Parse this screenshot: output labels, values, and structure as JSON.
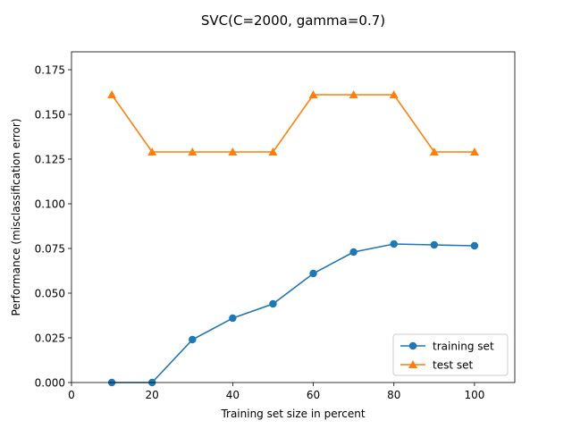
{
  "chart_data": {
    "type": "line",
    "title": "SVC(C=2000, gamma=0.7)",
    "xlabel": "Training set size in percent",
    "ylabel": "Performance (misclassification error)",
    "xlim": [
      0,
      110
    ],
    "ylim": [
      0,
      0.185
    ],
    "xticks": [
      0,
      20,
      40,
      60,
      80,
      100
    ],
    "yticks": [
      0.0,
      0.025,
      0.05,
      0.075,
      0.1,
      0.125,
      0.15,
      0.175
    ],
    "xtick_labels": [
      "0",
      "20",
      "40",
      "60",
      "80",
      "100"
    ],
    "ytick_labels": [
      "0.000",
      "0.025",
      "0.050",
      "0.075",
      "0.100",
      "0.125",
      "0.150",
      "0.175"
    ],
    "grid": false,
    "legend_position": "lower-right",
    "x": [
      10,
      20,
      30,
      40,
      50,
      60,
      70,
      80,
      90,
      100
    ],
    "series": [
      {
        "name": "training set",
        "color": "#1f77b4",
        "marker": "circle",
        "values": [
          0.0,
          0.0,
          0.024,
          0.036,
          0.044,
          0.061,
          0.073,
          0.0775,
          0.077,
          0.0765
        ]
      },
      {
        "name": "test set",
        "color": "#ff7f0e",
        "marker": "triangle",
        "values": [
          0.161,
          0.129,
          0.129,
          0.129,
          0.129,
          0.161,
          0.161,
          0.161,
          0.129,
          0.129
        ]
      }
    ]
  }
}
